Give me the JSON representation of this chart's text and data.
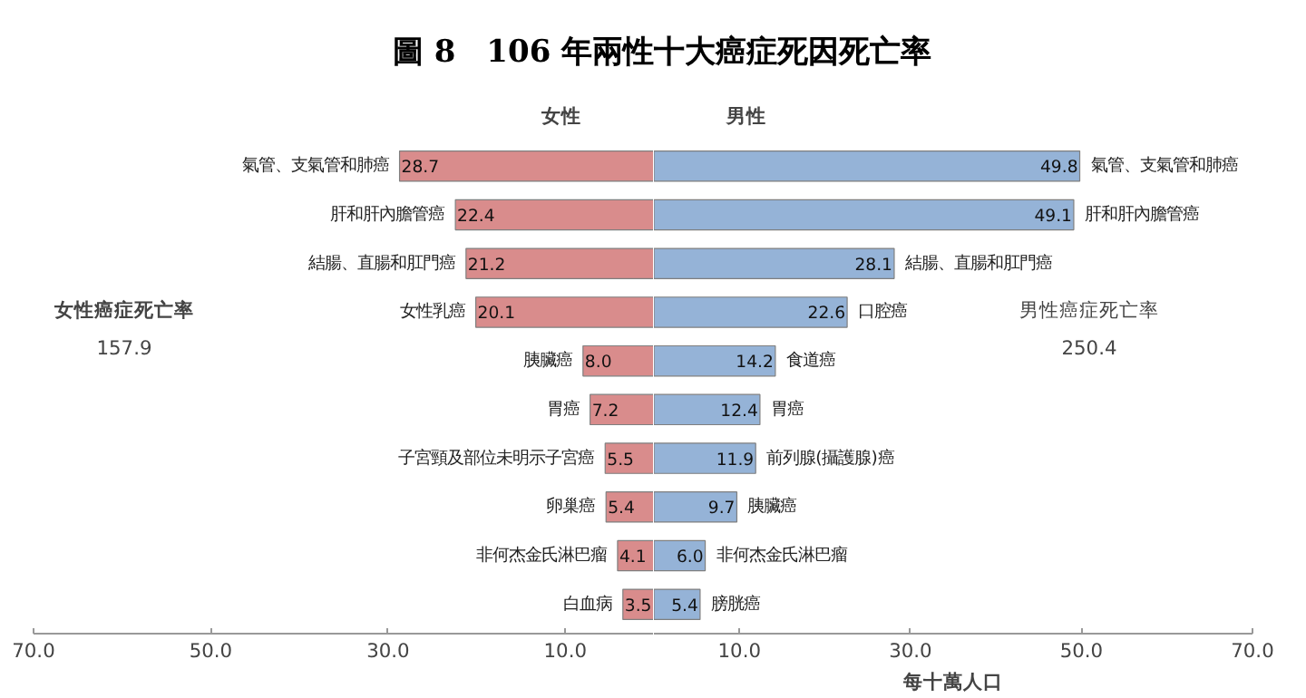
{
  "chart_data": [
    {
      "type": "bar",
      "orientation": "horizontal",
      "title": "圖 8　106 年兩性十大癌症死因死亡率",
      "subtitle": "女性",
      "categories": [
        "氣管、支氣管和肺癌",
        "肝和肝內膽管癌",
        "結腸、直腸和肛門癌",
        "女性乳癌",
        "胰臟癌",
        "胃癌",
        "子宮頸及部位未明示子宮癌",
        "卵巢癌",
        "非何杰金氏淋巴瘤",
        "白血病"
      ],
      "values": [
        28.7,
        22.4,
        21.2,
        20.1,
        8.0,
        7.2,
        5.5,
        5.4,
        4.1,
        3.5
      ],
      "color": "#d98c8c",
      "xlim": [
        70,
        0
      ],
      "xticks": [
        {
          "value": 70,
          "label": "70.0"
        },
        {
          "value": 50,
          "label": "50.0"
        },
        {
          "value": 30,
          "label": "30.0"
        },
        {
          "value": 10,
          "label": "10.0"
        }
      ],
      "value_labels": [
        "28.7",
        "22.4",
        "21.2",
        "20.1",
        "8.0",
        "7.2",
        "5.5",
        "5.4",
        "4.1",
        "3.5"
      ],
      "tick_labels": "x",
      "annotations": [
        "女性癌症死亡率",
        "157.9"
      ]
    },
    {
      "type": "bar",
      "orientation": "horizontal",
      "subtitle": "男性",
      "xlabel": "每十萬人口",
      "categories": [
        "氣管、支氣管和肺癌",
        "肝和肝內膽管癌",
        "結腸、直腸和肛門癌",
        "口腔癌",
        "食道癌",
        "胃癌",
        "前列腺(攝護腺)癌",
        "胰臟癌",
        "非何杰金氏淋巴瘤",
        "膀胱癌"
      ],
      "values": [
        49.8,
        49.1,
        28.1,
        22.6,
        14.2,
        12.4,
        11.9,
        9.7,
        6.0,
        5.4
      ],
      "color": "#95b3d7",
      "xlim": [
        0,
        70
      ],
      "xticks": [
        {
          "value": 10,
          "label": "10.0"
        },
        {
          "value": 30,
          "label": "30.0"
        },
        {
          "value": 50,
          "label": "50.0"
        },
        {
          "value": 70,
          "label": "70.0"
        }
      ],
      "value_labels": [
        "49.8",
        "49.1",
        "28.1",
        "22.6",
        "14.2",
        "12.4",
        "11.9",
        "9.7",
        "6.0",
        "5.4"
      ],
      "tick_labels": "x",
      "annotations": [
        "男性癌症死亡率",
        "250.4"
      ]
    }
  ]
}
